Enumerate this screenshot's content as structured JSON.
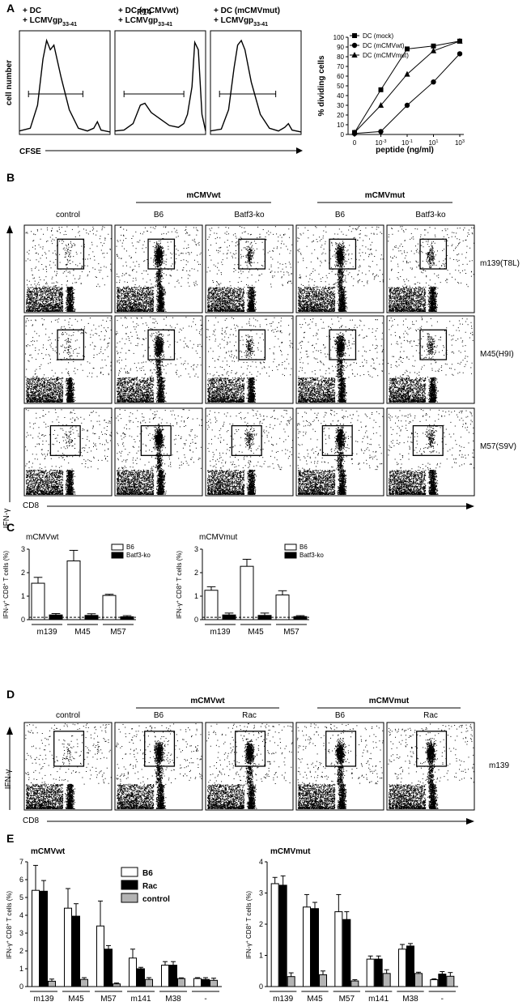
{
  "panels": {
    "A": {
      "label": "A",
      "header": "P14",
      "hist_titles": [
        [
          "+ DC",
          "+ LCMVgp",
          "33-41"
        ],
        [
          "+ DC (mCMVwt)",
          "+ LCMVgp",
          "33-41"
        ],
        [
          "+ DC (mCMVmut)",
          "+ LCMVgp",
          "33-41"
        ]
      ],
      "ylabel": "cell number",
      "xlabel": "CFSE",
      "line": {
        "ylabel": "% dividing cells",
        "xlabel": "peptide (ng/ml)",
        "yticks": [
          "0",
          "10",
          "20",
          "30",
          "40",
          "50",
          "60",
          "70",
          "80",
          "90",
          "100"
        ],
        "xticks": [
          {
            "base": "0",
            "exp": ""
          },
          {
            "base": "10",
            "exp": "-3"
          },
          {
            "base": "10",
            "exp": "-1"
          },
          {
            "base": "10",
            "exp": "1"
          },
          {
            "base": "10",
            "exp": "3"
          }
        ]
      }
    },
    "B": {
      "label": "B",
      "groups": [
        "mCMVwt",
        "mCMVmut"
      ],
      "columns": [
        "control",
        "B6",
        "Batf3-ko",
        "B6",
        "Batf3-ko"
      ],
      "rows": [
        "m139(T8L)",
        "M45(H9I)",
        "M57(S9V)"
      ],
      "ylabel": "IFN-γ",
      "xlabel": "CD8",
      "intensity": [
        [
          0,
          3,
          1,
          3,
          1
        ],
        [
          0,
          3,
          1,
          3,
          1
        ],
        [
          0,
          3,
          1,
          3,
          1
        ]
      ]
    },
    "C": {
      "label": "C",
      "ylabel_parts": [
        "IFN-γ",
        "+",
        " CD8",
        "+",
        " T cells (%)"
      ],
      "yticks": [
        "0",
        "1",
        "2",
        "3"
      ]
    },
    "D": {
      "label": "D",
      "groups": [
        "mCMVwt",
        "mCMVmut"
      ],
      "columns": [
        "control",
        "B6",
        "Rac",
        "B6",
        "Rac"
      ],
      "row_label": "m139",
      "ylabel": "IFN-γ",
      "xlabel": "CD8",
      "intensity": [
        [
          0,
          3,
          3,
          3,
          3
        ]
      ]
    },
    "E": {
      "label": "E",
      "ylabel_parts": [
        "IFN-γ",
        "+",
        " CD8",
        "+",
        " T cells (%)"
      ]
    }
  },
  "chart_data": [
    {
      "type": "line",
      "x": [
        "0",
        "10^-3",
        "10^-1",
        "10^1",
        "10^3"
      ],
      "ylim": [
        0,
        100
      ],
      "ylabel": "% dividing cells",
      "xlabel": "peptide (ng/ml)",
      "legend_position": "top-left",
      "series": [
        {
          "name": "DC (mock)",
          "marker": "square",
          "values": [
            2,
            46,
            88,
            91,
            96
          ]
        },
        {
          "name": "DC (mCMVwt)",
          "marker": "circle",
          "values": [
            1,
            3,
            30,
            54,
            83
          ]
        },
        {
          "name": "DC (mCMVmut)",
          "marker": "triangle",
          "values": [
            2,
            30,
            62,
            86,
            96
          ]
        }
      ]
    },
    {
      "type": "bar",
      "title": "mCMVwt",
      "categories": [
        "m139",
        "M45",
        "M57"
      ],
      "ylim": [
        0,
        3
      ],
      "dashed_baseline": 0.1,
      "legend_position": "top-right",
      "series": [
        {
          "name": "B6",
          "fill": "#ffffff",
          "values": [
            1.55,
            2.5,
            1.03
          ],
          "errors": [
            0.25,
            0.45,
            0.05
          ]
        },
        {
          "name": "Batf3-ko",
          "fill": "#000000",
          "values": [
            0.2,
            0.18,
            0.12
          ],
          "errors": [
            0.06,
            0.07,
            0.05
          ]
        }
      ]
    },
    {
      "type": "bar",
      "title": "mCMVmut",
      "categories": [
        "m139",
        "M45",
        "M57"
      ],
      "ylim": [
        0,
        3
      ],
      "dashed_baseline": 0.1,
      "legend_position": "top-right",
      "series": [
        {
          "name": "B6",
          "fill": "#ffffff",
          "values": [
            1.25,
            2.27,
            1.05
          ],
          "errors": [
            0.15,
            0.3,
            0.18
          ]
        },
        {
          "name": "Batf3-ko",
          "fill": "#000000",
          "values": [
            0.2,
            0.18,
            0.13
          ],
          "errors": [
            0.08,
            0.1,
            0.04
          ]
        }
      ]
    },
    {
      "type": "bar",
      "title": "mCMVwt",
      "categories": [
        "m139",
        "M45",
        "M57",
        "m141",
        "M38",
        "-"
      ],
      "ylim": [
        0,
        7
      ],
      "yticks": [
        "0",
        "1",
        "2",
        "3",
        "4",
        "5",
        "6",
        "7"
      ],
      "legend_position": "top-center",
      "series": [
        {
          "name": "B6",
          "fill": "#ffffff",
          "values": [
            5.4,
            4.4,
            3.4,
            1.6,
            1.2,
            0.45
          ],
          "errors": [
            1.4,
            1.1,
            1.4,
            0.5,
            0.2,
            0.05
          ]
        },
        {
          "name": "Rac",
          "fill": "#000000",
          "values": [
            5.35,
            3.95,
            2.1,
            1.0,
            1.2,
            0.4
          ],
          "errors": [
            0.6,
            0.7,
            0.2,
            0.08,
            0.2,
            0.1
          ]
        },
        {
          "name": "control",
          "fill": "#b3b3b3",
          "values": [
            0.3,
            0.4,
            0.15,
            0.4,
            0.45,
            0.35
          ],
          "errors": [
            0.12,
            0.1,
            0.05,
            0.1,
            0.04,
            0.12
          ]
        }
      ]
    },
    {
      "type": "bar",
      "title": "mCMVmut",
      "categories": [
        "m139",
        "M45",
        "M57",
        "m141",
        "M38",
        "-"
      ],
      "ylim": [
        0,
        4
      ],
      "yticks": [
        "0",
        "1",
        "2",
        "3",
        "4"
      ],
      "series": [
        {
          "name": "B6",
          "fill": "#ffffff",
          "values": [
            3.3,
            2.55,
            2.4,
            0.88,
            1.2,
            0.22
          ],
          "errors": [
            0.2,
            0.4,
            0.55,
            0.1,
            0.15,
            0.03
          ]
        },
        {
          "name": "Rac",
          "fill": "#000000",
          "values": [
            3.25,
            2.5,
            2.15,
            0.88,
            1.3,
            0.4
          ],
          "errors": [
            0.3,
            0.2,
            0.25,
            0.1,
            0.08,
            0.08
          ]
        },
        {
          "name": "control",
          "fill": "#b3b3b3",
          "values": [
            0.32,
            0.38,
            0.18,
            0.42,
            0.42,
            0.33
          ],
          "errors": [
            0.12,
            0.12,
            0.04,
            0.12,
            0.04,
            0.12
          ]
        }
      ]
    }
  ]
}
